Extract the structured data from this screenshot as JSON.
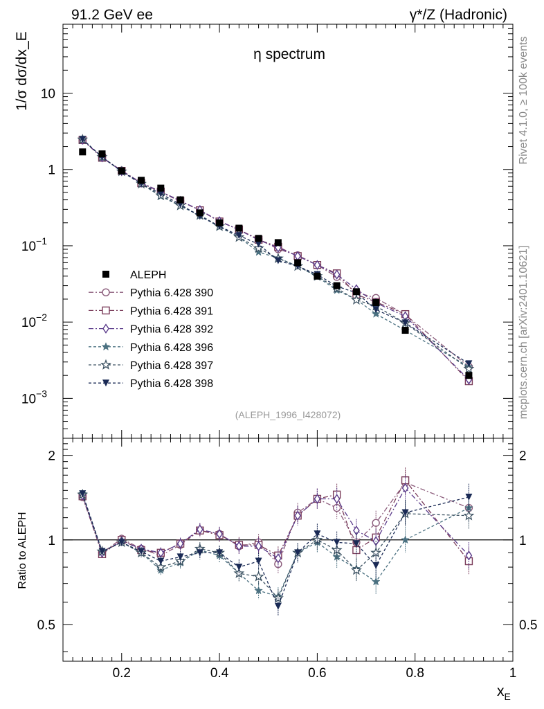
{
  "header": {
    "left": "91.2 GeV ee",
    "right": "γ*/Z (Hadronic)"
  },
  "side_labels": {
    "rivet": "Rivet 4.1.0, ≥ 100k events",
    "mcplots": "mcplots.cern.ch [arXiv:2401.10621]"
  },
  "chart_data": {
    "type": "line",
    "title": "η spectrum",
    "analysis_tag": "(ALEPH_1996_I428072)",
    "xlabel": "x_E",
    "ylabel": "1/σ  dσ/dx_E",
    "ratio_ylabel": "Ratio to ALEPH",
    "xlim": [
      0.08,
      1.0
    ],
    "ylim_main": [
      0.0003,
      80
    ],
    "yscale_main": "log",
    "ylim_ratio": [
      0.37,
      2.3
    ],
    "yscale_ratio": "log",
    "x_ticks": [
      0.2,
      0.4,
      0.6,
      0.8,
      1
    ],
    "x_tick_labels": [
      "0.2",
      "0.4",
      "0.6",
      "0.8",
      "1"
    ],
    "main_y_ticks": [
      {
        "value": 10,
        "mant": "10",
        "exp": ""
      },
      {
        "value": 1,
        "mant": "1",
        "exp": ""
      },
      {
        "value": 0.1,
        "mant": "10",
        "exp": "−1"
      },
      {
        "value": 0.01,
        "mant": "10",
        "exp": "−2"
      },
      {
        "value": 0.001,
        "mant": "10",
        "exp": "−3"
      }
    ],
    "ratio_y_ticks": [
      {
        "value": 2,
        "label": "2"
      },
      {
        "value": 1,
        "label": "1"
      },
      {
        "value": 0.5,
        "label": "0.5"
      }
    ],
    "legend_position": "lower-left",
    "x": [
      0.12,
      0.16,
      0.2,
      0.24,
      0.28,
      0.32,
      0.36,
      0.4,
      0.44,
      0.48,
      0.52,
      0.56,
      0.6,
      0.64,
      0.68,
      0.72,
      0.78,
      0.91
    ],
    "data": {
      "name": "ALEPH",
      "values": [
        1.7,
        1.6,
        0.96,
        0.72,
        0.57,
        0.4,
        0.27,
        0.2,
        0.17,
        0.125,
        0.11,
        0.06,
        0.04,
        0.03,
        0.025,
        0.018,
        0.0078,
        0.002
      ]
    },
    "series": [
      {
        "name": "Pythia 6.428 390",
        "color": "#8a5a7a",
        "marker": "circle-open",
        "dash": "7,3,2,3",
        "ratio": [
          1.42,
          0.9,
          1.01,
          0.93,
          0.88,
          0.96,
          1.08,
          1.05,
          0.95,
          0.98,
          0.82,
          1.25,
          1.4,
          1.3,
          0.98,
          1.15,
          1.6,
          1.3
        ]
      },
      {
        "name": "Pythia 6.428 391",
        "color": "#7a3c5a",
        "marker": "square-open",
        "dash": "7,3,2,3",
        "ratio": [
          1.43,
          0.89,
          1.0,
          0.92,
          0.9,
          0.97,
          1.08,
          1.04,
          0.96,
          0.96,
          0.88,
          1.22,
          1.4,
          1.45,
          0.92,
          1.02,
          1.63,
          0.84
        ]
      },
      {
        "name": "Pythia 6.428 392",
        "color": "#5a3a8a",
        "marker": "diamond-open",
        "dash": "7,3,2,3",
        "ratio": [
          1.44,
          0.9,
          0.99,
          0.93,
          0.9,
          0.97,
          1.09,
          1.05,
          0.95,
          0.95,
          0.86,
          1.22,
          1.4,
          1.4,
          1.08,
          0.99,
          1.53,
          0.88
        ]
      },
      {
        "name": "Pythia 6.428 396",
        "color": "#4a7080",
        "marker": "star-filled",
        "dash": "4,3",
        "ratio": [
          1.46,
          0.91,
          0.98,
          0.9,
          0.78,
          0.83,
          0.92,
          0.88,
          0.76,
          0.66,
          0.63,
          0.9,
          0.98,
          0.87,
          0.79,
          0.71,
          1.0,
          1.3
        ]
      },
      {
        "name": "Pythia 6.428 397",
        "color": "#3a5060",
        "marker": "star-open",
        "dash": "4,3",
        "ratio": [
          1.45,
          0.91,
          0.98,
          0.9,
          0.8,
          0.84,
          0.93,
          0.9,
          0.76,
          0.74,
          0.62,
          0.9,
          1.0,
          0.92,
          0.78,
          0.9,
          1.24,
          1.22
        ]
      },
      {
        "name": "Pythia 6.428 398",
        "color": "#1a2a55",
        "marker": "triangle-down-filled",
        "dash": "4,3",
        "ratio": [
          1.46,
          0.91,
          0.98,
          0.91,
          0.84,
          0.87,
          0.9,
          0.9,
          0.8,
          0.84,
          0.58,
          0.9,
          1.05,
          0.98,
          0.97,
          0.81,
          1.25,
          1.42
        ]
      }
    ]
  }
}
